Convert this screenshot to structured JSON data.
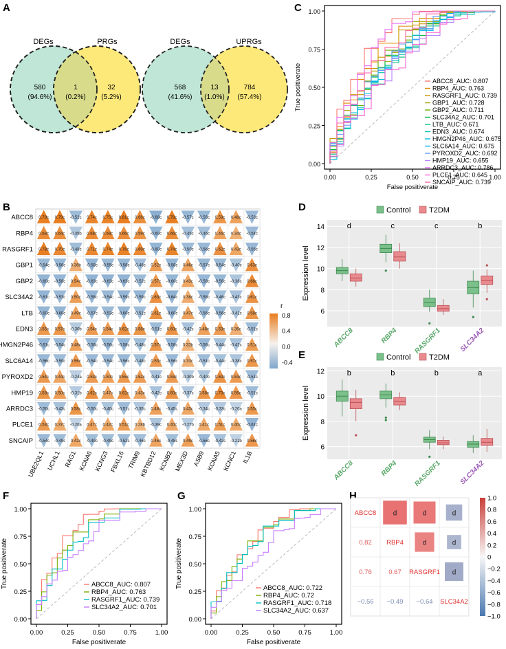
{
  "panel_labels": [
    "A",
    "B",
    "C",
    "D",
    "E",
    "F",
    "G",
    "H"
  ],
  "colors": {
    "venn_green": "#bfe6d6",
    "venn_yellow": "#fde97a",
    "overlap": "#d8db8a",
    "control": "#7bbf8a",
    "t2dm": "#e98a8e",
    "pos": "#e98a2c",
    "neg": "#8fb0d2",
    "label_green": "#5aa86a",
    "label_purple": "#9b59b6",
    "red": "#e0312f"
  },
  "venn": [
    {
      "left_label": "DEGs",
      "right_label": "PRGs",
      "left_count": "580",
      "left_pct": "(94.6%)",
      "mid_count": "1",
      "mid_pct": "(0.2%)",
      "right_count": "32",
      "right_pct": "(5.2%)"
    },
    {
      "left_label": "DEGs",
      "right_label": "UPRGs",
      "left_count": "568",
      "left_pct": "(41.6%)",
      "mid_count": "13",
      "mid_pct": "(1.0%)",
      "right_count": "784",
      "right_pct": "(57.4%)"
    }
  ],
  "chart_data": [
    {
      "panel": "B",
      "type": "heatmap",
      "rows": [
        "ABCC8",
        "RBP4",
        "RASGRF1",
        "GBP1",
        "GBP2",
        "SLC34A2",
        "LTB",
        "EDN3",
        "HMGN2P46",
        "SLC6A14",
        "PYROXD2",
        "HMP19",
        "ARRDC3",
        "PLCE1",
        "SNCAIP"
      ],
      "cols": [
        "UBE2QL1",
        "UCHL1",
        "RAG1",
        "KCNA6",
        "KCNG3",
        "FBXL16",
        "TRIM9",
        "KBTBD12",
        "KCNB2",
        "MEX3D",
        "ASB9",
        "KCNA5",
        "KCNC1",
        "IL1B"
      ],
      "values": [
        [
          "0.79c",
          "0.79c",
          "-0.52c",
          "0.74c",
          "0.75c",
          "0.81c",
          "0.66c",
          "-0.68c",
          "0.78c",
          "-0.57c",
          "-0.56c",
          "0.59c",
          "0.48c",
          "-0.53c"
        ],
        [
          "0.68c",
          "0.64c",
          "-0.35b",
          "0.68c",
          "0.68c",
          "0.66c",
          "0.59c",
          "-0.60c",
          "0.66c",
          "-0.45c",
          "-0.46c",
          "0.46c",
          "0.34c",
          "-0.54c"
        ],
        [
          "0.78c",
          "0.70c",
          "-0.48c",
          "0.71c",
          "0.74c",
          "0.76c",
          "0.69c",
          "-0.60c",
          "0.74c",
          "-0.50c",
          "-0.56c",
          "0.62c",
          "0.43c",
          "-0.55c"
        ],
        [
          "-0.54c",
          "-0.56c",
          "0.36b",
          "-0.58c",
          "-0.55c",
          "-0.58c",
          "-0.46c",
          "0.52c",
          "-0.58c",
          "0.46c",
          "-0.57c",
          "-0.54c",
          "-0.40c",
          "0.63c"
        ],
        [
          "-0.60c",
          "-0.58c",
          "0.54c",
          "-0.63c",
          "-0.63c",
          "-0.63c",
          "-0.52c",
          "0.57c",
          "-0.60c",
          "0.43c",
          "-0.58c",
          "-0.56c",
          "-0.38c",
          "0.68c"
        ],
        [
          "-0.61c",
          "-0.53c",
          "0.50c",
          "-0.58c",
          "-0.54c",
          "-0.59c",
          "-0.59c",
          "0.63c",
          "-0.64c",
          "0.38c",
          "-0.58c",
          "-0.46c",
          "-0.43c",
          "0.61c"
        ],
        [
          "-0.60c",
          "-0.60c",
          "0.49c",
          "-0.57c",
          "-0.53c",
          "-0.60c",
          "-0.51c",
          "0.61c",
          "-0.60c",
          "0.47c",
          "-0.56c",
          "-0.56c",
          "-0.41c",
          "0.58c"
        ],
        [
          "0.55c",
          "0.57c",
          "-0.30b",
          "0.54c",
          "0.54c",
          "0.62c",
          "0.58c",
          "-0.51c",
          "0.60c",
          "-0.42c",
          "0.48c",
          "0.53c",
          "0.36c",
          "-0.51c"
        ],
        [
          "-0.61c",
          "-0.54c",
          "0.48c",
          "-0.56c",
          "-0.56c",
          "-0.58c",
          "-0.48c",
          "0.57c",
          "-0.58c",
          "0.32b",
          "-0.56c",
          "-0.44c",
          "-0.42c",
          "0.51c"
        ],
        [
          "-0.56c",
          "-0.50c",
          "0.56c",
          "-0.54c",
          "-0.54c",
          "-0.56c",
          "-0.48c",
          "0.53c",
          "-0.56c",
          "0.33c",
          "-0.51c",
          "-0.44c",
          "-0.38c",
          "0.57c"
        ],
        [
          "0.54c",
          "0.44c",
          "-0.24a",
          "0.53c",
          "0.50c",
          "0.55c",
          "0.52c",
          "-0.41c",
          "0.53c",
          "-0.30b",
          "-0.40c",
          "0.60c",
          "0.53c",
          "-0.51c"
        ],
        [
          "0.58c",
          "0.50c",
          "-0.31b",
          "0.62c",
          "0.47c",
          "0.62c",
          "0.43c",
          "-0.42c",
          "0.60c",
          "-0.37c",
          "0.58c",
          "0.70c",
          "0.56c",
          "-0.51c"
        ],
        [
          "-0.50c",
          "-0.43c",
          "0.58c",
          "-0.50c",
          "-0.40c",
          "-0.51c",
          "-0.35c",
          "0.48c",
          "-0.45c",
          "0.43c",
          "-0.34c",
          "-0.33c",
          "-0.20a",
          "0.55c"
        ],
        [
          "0.53c",
          "0.37c",
          "-0.20a",
          "0.47c",
          "0.42c",
          "0.51c",
          "0.28b",
          "-0.39c",
          "0.40c",
          "-0.27b",
          "0.41c",
          "0.51c",
          "0.40c",
          "-0.61c"
        ],
        [
          "-0.54c",
          "-0.49c",
          "0.42c",
          "-0.49c",
          "-0.49c",
          "-0.52c",
          "-0.46c",
          "0.46c",
          "-0.48c",
          "0.49c",
          "-0.56c",
          "-0.42c",
          "-0.21b",
          "0.56c"
        ]
      ],
      "legend_title": "r",
      "legend_ticks": [
        "0.8",
        "0.4",
        "0.0",
        "-0.4"
      ],
      "legend_range": [
        -0.55,
        0.85
      ]
    },
    {
      "panel": "C",
      "type": "line",
      "title": "",
      "xlabel": "False positiverate",
      "ylabel": "True positiverate",
      "xlim": [
        0,
        1
      ],
      "ylim": [
        0,
        1
      ],
      "x_ticks": [
        "0.00",
        "0.25",
        "0.50",
        "0.75",
        "1.00"
      ],
      "y_ticks": [
        "0.00",
        "0.25",
        "0.50",
        "0.75",
        "1.00"
      ],
      "series": [
        {
          "name": "ABCC8_AUC: 0.807",
          "color": "#f8766d",
          "auc": 0.807
        },
        {
          "name": "RBP4_AUC: 0.763",
          "color": "#e58700",
          "auc": 0.763
        },
        {
          "name": "RASGRF1_AUC: 0.739",
          "color": "#c99800",
          "auc": 0.739
        },
        {
          "name": "GBP1_AUC: 0.728",
          "color": "#a3a500",
          "auc": 0.728
        },
        {
          "name": "GBP2_AUC: 0.711",
          "color": "#6bb100",
          "auc": 0.711
        },
        {
          "name": "SLC34A2_AUC: 0.701",
          "color": "#00ba38",
          "auc": 0.701
        },
        {
          "name": "LTB_AUC: 0.671",
          "color": "#00bf7d",
          "auc": 0.671
        },
        {
          "name": "EDN3_AUC: 0.674",
          "color": "#00c0af",
          "auc": 0.674
        },
        {
          "name": "HMGN2P46_AUC: 0.675",
          "color": "#00bcd8",
          "auc": 0.675
        },
        {
          "name": "SLC6A14_AUC: 0.675",
          "color": "#00b0f6",
          "auc": 0.675
        },
        {
          "name": "PYROXD2_AUC: 0.692",
          "color": "#619cff",
          "auc": 0.692
        },
        {
          "name": "HMP19_AUC: 0.655",
          "color": "#b983ff",
          "auc": 0.655
        },
        {
          "name": "ARRDC3_AUC: 0.786",
          "color": "#e76bf3",
          "auc": 0.786
        },
        {
          "name": "PLCE1_AUC: 0.645",
          "color": "#fd61d1",
          "auc": 0.645
        },
        {
          "name": "SNCAIP_AUC: 0.739",
          "color": "#ff67a4",
          "auc": 0.739
        }
      ]
    },
    {
      "panel": "D",
      "type": "box",
      "ylabel": "Expression level",
      "ylim": [
        4.5,
        14.6
      ],
      "y_ticks": [
        6,
        8,
        10,
        12,
        14
      ],
      "legend": [
        "Control",
        "T2DM"
      ],
      "categories": [
        "ABCC8",
        "RBP4",
        "RASGRF1",
        "SLC34A2"
      ],
      "sig": [
        "d",
        "c",
        "c",
        "b"
      ],
      "series": [
        {
          "name": "Control",
          "boxes": [
            {
              "min": 8.8,
              "q1": 9.5,
              "med": 9.8,
              "q3": 10.1,
              "max": 10.9,
              "out": []
            },
            {
              "min": 10.6,
              "q1": 11.5,
              "med": 11.9,
              "q3": 12.3,
              "max": 13.2,
              "out": [
                9.8
              ]
            },
            {
              "min": 5.9,
              "q1": 6.4,
              "med": 6.8,
              "q3": 7.2,
              "max": 8.0,
              "out": [
                4.8
              ]
            },
            {
              "min": 6.3,
              "q1": 7.6,
              "med": 8.2,
              "q3": 8.8,
              "max": 9.8,
              "out": [
                5.4
              ]
            }
          ]
        },
        {
          "name": "T2DM",
          "boxes": [
            {
              "min": 8.3,
              "q1": 8.8,
              "med": 9.1,
              "q3": 9.5,
              "max": 10.0,
              "out": []
            },
            {
              "min": 10.0,
              "q1": 10.7,
              "med": 11.1,
              "q3": 11.6,
              "max": 12.4,
              "out": []
            },
            {
              "min": 5.6,
              "q1": 5.95,
              "med": 6.2,
              "q3": 6.5,
              "max": 7.1,
              "out": []
            },
            {
              "min": 7.7,
              "q1": 8.5,
              "med": 8.9,
              "q3": 9.3,
              "max": 9.9,
              "out": [
                7.1,
                10.3
              ]
            }
          ]
        }
      ]
    },
    {
      "panel": "E",
      "type": "box",
      "ylabel": "Expression level",
      "ylim": [
        5.0,
        12.3
      ],
      "y_ticks": [
        6,
        8,
        10,
        12
      ],
      "legend": [
        "Control",
        "T2DM"
      ],
      "categories": [
        "ABCC8",
        "RBP4",
        "RASGRF1",
        "SLC34A2"
      ],
      "sig": [
        "b",
        "b",
        "b",
        "a"
      ],
      "series": [
        {
          "name": "Control",
          "boxes": [
            {
              "min": 8.4,
              "q1": 9.6,
              "med": 10.0,
              "q3": 10.4,
              "max": 11.3,
              "out": []
            },
            {
              "min": 9.1,
              "q1": 9.8,
              "med": 10.1,
              "q3": 10.4,
              "max": 11.0,
              "out": [
                8.3,
                8.1
              ]
            },
            {
              "min": 5.8,
              "q1": 6.35,
              "med": 6.55,
              "q3": 6.75,
              "max": 7.3,
              "out": [
                5.2
              ]
            },
            {
              "min": 5.5,
              "q1": 5.95,
              "med": 6.2,
              "q3": 6.4,
              "max": 6.9,
              "out": []
            }
          ]
        },
        {
          "name": "T2DM",
          "boxes": [
            {
              "min": 8.0,
              "q1": 9.0,
              "med": 9.5,
              "q3": 9.8,
              "max": 10.5,
              "out": [
                6.9
              ]
            },
            {
              "min": 8.9,
              "q1": 9.3,
              "med": 9.6,
              "q3": 9.9,
              "max": 10.3,
              "out": []
            },
            {
              "min": 5.8,
              "q1": 6.15,
              "med": 6.3,
              "q3": 6.5,
              "max": 6.8,
              "out": []
            },
            {
              "min": 5.6,
              "q1": 6.1,
              "med": 6.35,
              "q3": 6.65,
              "max": 7.4,
              "out": []
            }
          ]
        }
      ]
    },
    {
      "panel": "F",
      "type": "line",
      "xlabel": "False positiverate",
      "ylabel": "True positiverate",
      "xlim": [
        0,
        1
      ],
      "ylim": [
        0,
        1
      ],
      "x_ticks": [
        "0.00",
        "0.25",
        "0.50",
        "0.75",
        "1.00"
      ],
      "y_ticks": [
        "0.00",
        "0.25",
        "0.50",
        "0.75",
        "1.00"
      ],
      "series": [
        {
          "name": "ABCC8_AUC: 0.807",
          "color": "#f8766d",
          "auc": 0.807
        },
        {
          "name": "RBP4_AUC: 0.763",
          "color": "#7cae00",
          "auc": 0.763
        },
        {
          "name": "RASGRF1_AUC: 0.739",
          "color": "#00bfc4",
          "auc": 0.739
        },
        {
          "name": "SLC34A2_AUC: 0.701",
          "color": "#c77cff",
          "auc": 0.701
        }
      ]
    },
    {
      "panel": "G",
      "type": "line",
      "xlabel": "False positiverate",
      "ylabel": "True positiverate",
      "xlim": [
        0,
        1
      ],
      "ylim": [
        0,
        1
      ],
      "x_ticks": [
        "0.00",
        "0.25",
        "0.50",
        "0.75",
        "1.00"
      ],
      "y_ticks": [
        "0.00",
        "0.25",
        "0.50",
        "0.75",
        "1.00"
      ],
      "series": [
        {
          "name": "ABCC8_AUC: 0.722",
          "color": "#f8766d",
          "auc": 0.722
        },
        {
          "name": "RBP4_AUC: 0.72",
          "color": "#7cae00",
          "auc": 0.72
        },
        {
          "name": "RASGRF1_AUC: 0.718",
          "color": "#00bfc4",
          "auc": 0.718
        },
        {
          "name": "SLC34A2_AUC: 0.637",
          "color": "#c77cff",
          "auc": 0.637
        }
      ]
    },
    {
      "panel": "H",
      "type": "heatmap",
      "genes": [
        "ABCC8",
        "RBP4",
        "RASGRF1",
        "SLC34A2"
      ],
      "lower": [
        [
          1,
          0,
          "0.82"
        ],
        [
          2,
          0,
          "0.76"
        ],
        [
          2,
          1,
          "0.67"
        ],
        [
          3,
          0,
          "−0.56"
        ],
        [
          3,
          1,
          "−0.49"
        ],
        [
          3,
          2,
          "−0.64"
        ]
      ],
      "upper": [
        [
          0,
          1,
          0.82,
          "d"
        ],
        [
          0,
          2,
          0.76,
          "d"
        ],
        [
          0,
          3,
          -0.56,
          "d"
        ],
        [
          1,
          2,
          0.67,
          "d"
        ],
        [
          1,
          3,
          -0.49,
          "d"
        ],
        [
          2,
          3,
          -0.64,
          "d"
        ]
      ],
      "legend_ticks": [
        "1.0",
        "0.8",
        "0.6",
        "0.4",
        "0.2",
        "0",
        "−0.2",
        "−0.4",
        "−0.6",
        "−0.8",
        "−1.0"
      ]
    }
  ]
}
